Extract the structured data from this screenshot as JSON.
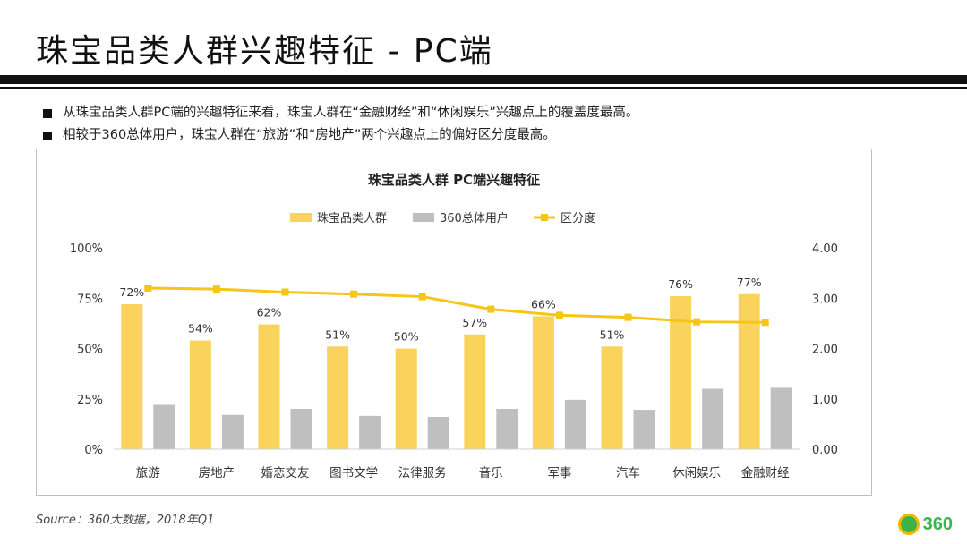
{
  "page": {
    "title": "珠宝品类人群兴趣特征 - PC端",
    "bullets": [
      "从珠宝品类人群PC端的兴趣特征来看，珠宝人群在“金融财经”和“休闲娱乐”兴趣点上的覆盖度最高。",
      "相较于360总体用户，珠宝人群在“旅游”和“房地产”两个兴趣点上的偏好区分度最高。"
    ],
    "source": "Source：360大数据，2018年Q1",
    "logo_text": "360"
  },
  "colors": {
    "jewelry": "#FAD35C",
    "overall": "#BFBFBF",
    "distinction": "#F5C518"
  },
  "chart_data": {
    "type": "bar",
    "title": "珠宝品类人群 PC端兴趣特征",
    "categories": [
      "旅游",
      "房地产",
      "婚恋交友",
      "图书文学",
      "法律服务",
      "音乐",
      "军事",
      "汽车",
      "休闲娱乐",
      "金融财经"
    ],
    "series": [
      {
        "name": "珠宝品类人群",
        "type": "bar",
        "axis": "left",
        "values": [
          0.72,
          0.54,
          0.62,
          0.51,
          0.5,
          0.57,
          0.66,
          0.51,
          0.76,
          0.77
        ],
        "labels": [
          "72%",
          "54%",
          "62%",
          "51%",
          "50%",
          "57%",
          "66%",
          "51%",
          "76%",
          "77%"
        ]
      },
      {
        "name": "360总体用户",
        "type": "bar",
        "axis": "left",
        "values": [
          0.22,
          0.17,
          0.2,
          0.165,
          0.16,
          0.2,
          0.245,
          0.195,
          0.3,
          0.305
        ]
      },
      {
        "name": "区分度",
        "type": "line",
        "axis": "right",
        "values": [
          3.2,
          3.18,
          3.12,
          3.08,
          3.03,
          2.78,
          2.66,
          2.62,
          2.53,
          2.52
        ]
      }
    ],
    "y_left": {
      "min": 0,
      "max": 1,
      "ticks": [
        0,
        0.25,
        0.5,
        0.75,
        1
      ],
      "tick_labels": [
        "0%",
        "25%",
        "50%",
        "75%",
        "100%"
      ]
    },
    "y_right": {
      "min": 0,
      "max": 4,
      "ticks": [
        0,
        1,
        2,
        3,
        4
      ],
      "tick_labels": [
        "0.00",
        "1.00",
        "2.00",
        "3.00",
        "4.00"
      ]
    },
    "legend_position": "top-center",
    "grid": false
  }
}
